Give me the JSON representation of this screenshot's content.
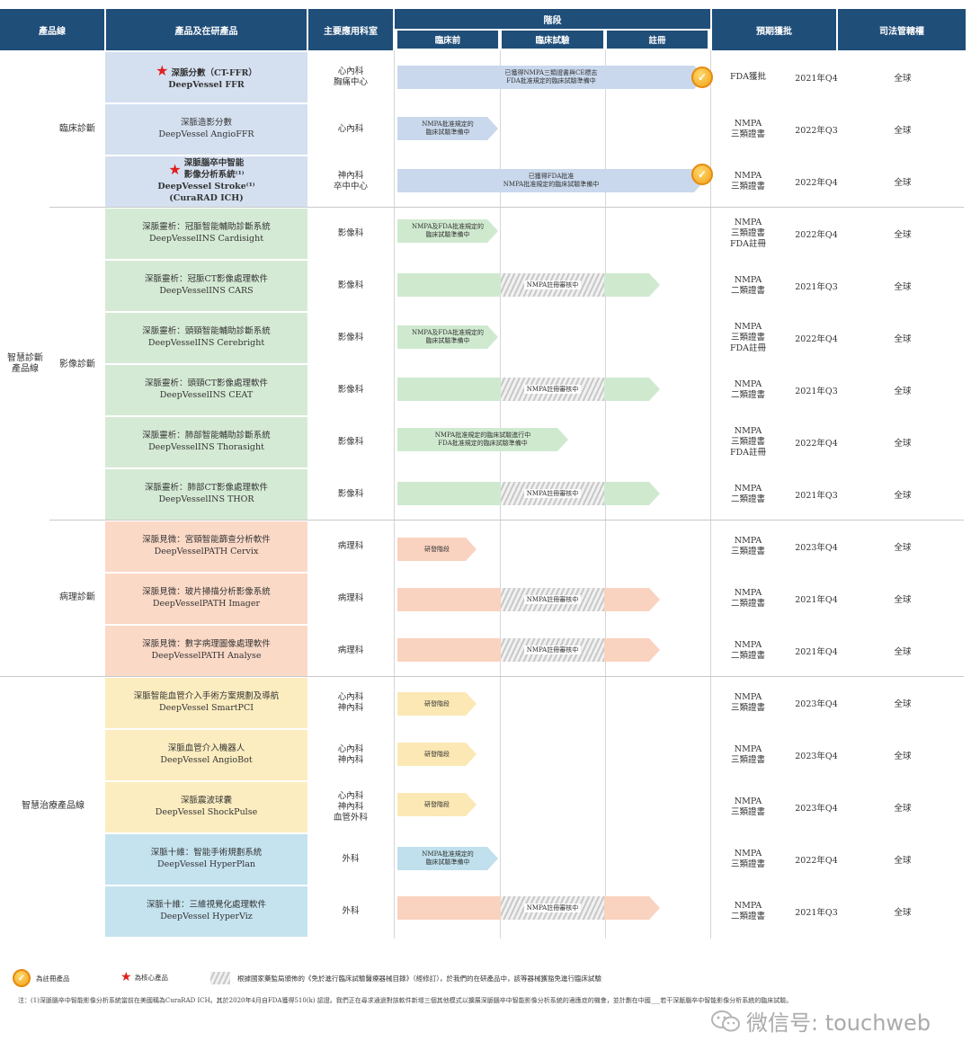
{
  "header": {
    "product_line": "產品線",
    "products": "產品及在研產品",
    "department": "主要應用科室",
    "stage": "階段",
    "stage_preclinical": "臨床前",
    "stage_clinical": "臨床試驗",
    "stage_registration": "註冊",
    "approval": "預期獲批",
    "jurisdiction": "司法管轄權"
  },
  "categories": {
    "line_diagnosis": "智慧診斷\n產品線",
    "clinical": "臨床診斷",
    "imaging": "影像診斷",
    "pathology": "病理診斷",
    "line_treatment": "智慧治療產品線"
  },
  "rows": [
    {
      "name_zh": "深脈分數（CT-FFR）",
      "name_en": "DeepVessel FFR",
      "dept": "心內科\n胸痛中心",
      "bar": "已獲得NMPA三類證書與CE標志\nFDA批准規定的臨床試驗準備中",
      "hatch": "",
      "approval": "FDA獲批",
      "date": "2021年Q4",
      "jur": "全球",
      "core": true,
      "medal": true
    },
    {
      "name_zh": "深脈造影分數",
      "name_en": "DeepVessel AngioFFR",
      "dept": "心內科",
      "bar": "NMPA批准規定的\n臨床試驗準備中",
      "hatch": "",
      "approval": "NMPA\n三類證書",
      "date": "2022年Q3",
      "jur": "全球",
      "core": false,
      "medal": false
    },
    {
      "name_zh": "深脈腦卒中智能\n影像分析系統⁽¹⁾",
      "name_en": "DeepVessel Stroke⁽¹⁾\n(CuraRAD ICH)",
      "dept": "神內科\n卒中中心",
      "bar": "已獲得FDA批准\nNMPA批准規定的臨床試驗準備中",
      "hatch": "",
      "approval": "NMPA\n三類證書",
      "date": "2022年Q4",
      "jur": "全球",
      "core": true,
      "medal": true
    },
    {
      "name_zh": "深脈靈析：冠脈智能輔助診斷系統",
      "name_en": "DeepVesselINS Cardisight",
      "dept": "影像科",
      "bar": "NMPA及FDA批准規定的\n臨床試驗準備中",
      "hatch": "",
      "approval": "NMPA\n三類證書\nFDA註冊",
      "date": "2022年Q4",
      "jur": "全球",
      "core": false,
      "medal": false
    },
    {
      "name_zh": "深脈靈析：冠脈CT影像處理軟件",
      "name_en": "DeepVesselINS CARS",
      "dept": "影像科",
      "bar": "",
      "hatch": "NMPA註冊審核中",
      "approval": "NMPA\n二類證書",
      "date": "2021年Q3",
      "jur": "全球",
      "core": false,
      "medal": false
    },
    {
      "name_zh": "深脈靈析：頭頸智能輔助診斷系統",
      "name_en": "DeepVesselINS Cerebright",
      "dept": "影像科",
      "bar": "NMPA及FDA批准規定的\n臨床試驗準備中",
      "hatch": "",
      "approval": "NMPA\n三類證書\nFDA註冊",
      "date": "2022年Q4",
      "jur": "全球",
      "core": false,
      "medal": false
    },
    {
      "name_zh": "深脈靈析：頭頸CT影像處理軟件",
      "name_en": "DeepVesselINS CEAT",
      "dept": "影像科",
      "bar": "",
      "hatch": "NMPA註冊審核中",
      "approval": "NMPA\n二類證書",
      "date": "2021年Q3",
      "jur": "全球",
      "core": false,
      "medal": false
    },
    {
      "name_zh": "深脈靈析：肺部智能輔助診斷系統",
      "name_en": "DeepVesselINS Thorasight",
      "dept": "影像科",
      "bar": "NMPA批准規定的臨床試驗進行中\nFDA批准規定的臨床試驗準備中",
      "hatch": "",
      "approval": "NMPA\n三類證書\nFDA註冊",
      "date": "2022年Q4",
      "jur": "全球",
      "core": false,
      "medal": false
    },
    {
      "name_zh": "深脈靈析：肺部CT影像處理軟件",
      "name_en": "DeepVesselINS THOR",
      "dept": "影像科",
      "bar": "",
      "hatch": "NMPA註冊審核中",
      "approval": "NMPA\n二類證書",
      "date": "2021年Q3",
      "jur": "全球",
      "core": false,
      "medal": false
    },
    {
      "name_zh": "深脈見微：宮頸智能篩查分析軟件",
      "name_en": "DeepVesselPATH Cervix",
      "dept": "病理科",
      "bar": "研發階段",
      "hatch": "",
      "approval": "NMPA\n三類證書",
      "date": "2023年Q4",
      "jur": "全球",
      "core": false,
      "medal": false
    },
    {
      "name_zh": "深脈見微：玻片掃描分析影像系統",
      "name_en": "DeepVesselPATH Imager",
      "dept": "病理科",
      "bar": "",
      "hatch": "NMPA註冊審核中",
      "approval": "NMPA\n二類證書",
      "date": "2021年Q4",
      "jur": "全球",
      "core": false,
      "medal": false
    },
    {
      "name_zh": "深脈見微：數字病理圖像處理軟件",
      "name_en": "DeepVesselPATH Analyse",
      "dept": "病理科",
      "bar": "",
      "hatch": "NMPA註冊審核中",
      "approval": "NMPA\n二類證書",
      "date": "2021年Q4",
      "jur": "全球",
      "core": false,
      "medal": false
    },
    {
      "name_zh": "深脈智能血管介入手術方案規劃及導航",
      "name_en": "DeepVessel SmartPCI",
      "dept": "心內科\n神內科",
      "bar": "研發階段",
      "hatch": "",
      "approval": "NMPA\n三類證書",
      "date": "2023年Q4",
      "jur": "全球",
      "core": false,
      "medal": false
    },
    {
      "name_zh": "深脈血管介入機器人",
      "name_en": "DeepVessel AngioBot",
      "dept": "心內科\n神內科",
      "bar": "研發階段",
      "hatch": "",
      "approval": "NMPA\n三類證書",
      "date": "2023年Q4",
      "jur": "全球",
      "core": false,
      "medal": false
    },
    {
      "name_zh": "深脈震波球囊",
      "name_en": "DeepVessel ShockPulse",
      "dept": "心內科\n神內科\n血管外科",
      "bar": "研發階段",
      "hatch": "",
      "approval": "NMPA\n三類證書",
      "date": "2023年Q4",
      "jur": "全球",
      "core": false,
      "medal": false
    },
    {
      "name_zh": "深脈十維：智能手術規劃系統",
      "name_en": "DeepVessel HyperPlan",
      "dept": "外科",
      "bar": "NMPA批准規定的\n臨床試驗準備中",
      "hatch": "",
      "approval": "NMPA\n三類證書",
      "date": "2022年Q4",
      "jur": "全球",
      "core": false,
      "medal": false
    },
    {
      "name_zh": "深脈十維：三維視覺化處理軟件",
      "name_en": "DeepVessel HyperViz",
      "dept": "外科",
      "bar": "",
      "hatch": "NMPA註冊審核中",
      "approval": "NMPA\n二類證書",
      "date": "2021年Q3",
      "jur": "全球",
      "core": false,
      "medal": false
    }
  ],
  "legend": {
    "registered": "為註冊產品",
    "core": "為核心產品",
    "exempt": "根據國家藥監局頒佈的《免於進行臨床試驗醫療器械目錄》（經修訂），於我們的在研產品中，該等器械獲豁免進行臨床試驗"
  },
  "note": "注：(1)深脈腦卒中智能影像分析系統當前在美國稱為CuraRAD ICH。其於2020年4月自FDA獲得510(k) 認證。我們正在尋求通過對該軟件新增三個其他模式以擴展深脈腦卒中智能影像分析系統的適應症的機會，並計劃在中國___若干深脈腦卒中智能影像分析系統的臨床試驗。",
  "watermark": "微信号: touchweb",
  "colors": {
    "header": "#1f4e79",
    "blue_cell": "#d4e0f0",
    "blue_bar": "#c9d8ec",
    "green_cell": "#d5ead5",
    "green_bar": "#cfe9cf",
    "orange_cell": "#fbd9c7",
    "orange_bar": "#fad2c0",
    "yellow_cell": "#fcedc0",
    "yellow_bar": "#fbe8b4",
    "cyan_cell": "#c5e3ef",
    "cyan_bar": "#bfe0ec",
    "star": "#e02020"
  }
}
